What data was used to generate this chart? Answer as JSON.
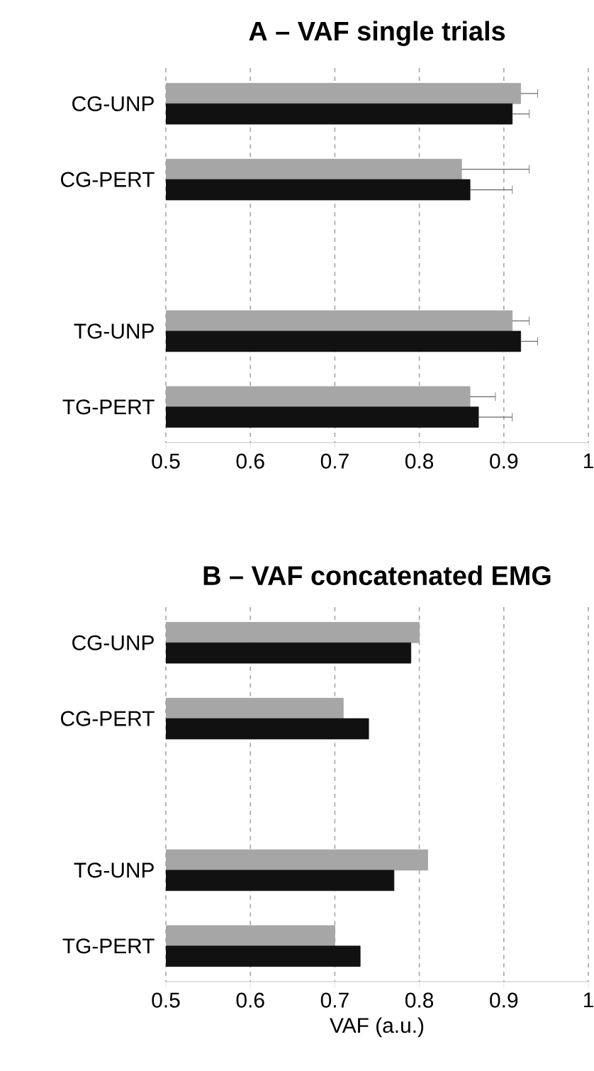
{
  "chart_data": [
    {
      "type": "bar",
      "orientation": "horizontal",
      "title": "A – VAF single trials",
      "categories": [
        "CG-UNP",
        "CG-PERT",
        null,
        "TG-UNP",
        "TG-PERT"
      ],
      "series": [
        {
          "color": "#a6a6a6",
          "values": [
            0.92,
            0.85,
            null,
            0.91,
            0.86
          ],
          "errors": [
            [
              0.92,
              0.94
            ],
            [
              0.85,
              0.93
            ],
            null,
            [
              0.91,
              0.93
            ],
            [
              0.86,
              0.89
            ]
          ]
        },
        {
          "color": "#111111",
          "values": [
            0.91,
            0.86,
            null,
            0.92,
            0.87
          ],
          "errors": [
            [
              0.91,
              0.93
            ],
            [
              0.86,
              0.91
            ],
            null,
            [
              0.92,
              0.94
            ],
            [
              0.87,
              0.91
            ]
          ]
        }
      ],
      "xlim": [
        0.5,
        1
      ],
      "xticks": [
        0.5,
        0.6,
        0.7,
        0.8,
        0.9,
        1
      ],
      "grid": "x"
    },
    {
      "type": "bar",
      "orientation": "horizontal",
      "title": "B – VAF concatenated EMG",
      "xlabel": "VAF (a.u.)",
      "categories": [
        "CG-UNP",
        "CG-PERT",
        null,
        "TG-UNP",
        "TG-PERT"
      ],
      "series": [
        {
          "color": "#a6a6a6",
          "values": [
            0.8,
            0.71,
            null,
            0.81,
            0.7
          ]
        },
        {
          "color": "#111111",
          "values": [
            0.79,
            0.74,
            null,
            0.77,
            0.73
          ]
        }
      ],
      "xlim": [
        0.5,
        1
      ],
      "xticks": [
        0.5,
        0.6,
        0.7,
        0.8,
        0.9,
        1
      ],
      "grid": "x"
    }
  ]
}
